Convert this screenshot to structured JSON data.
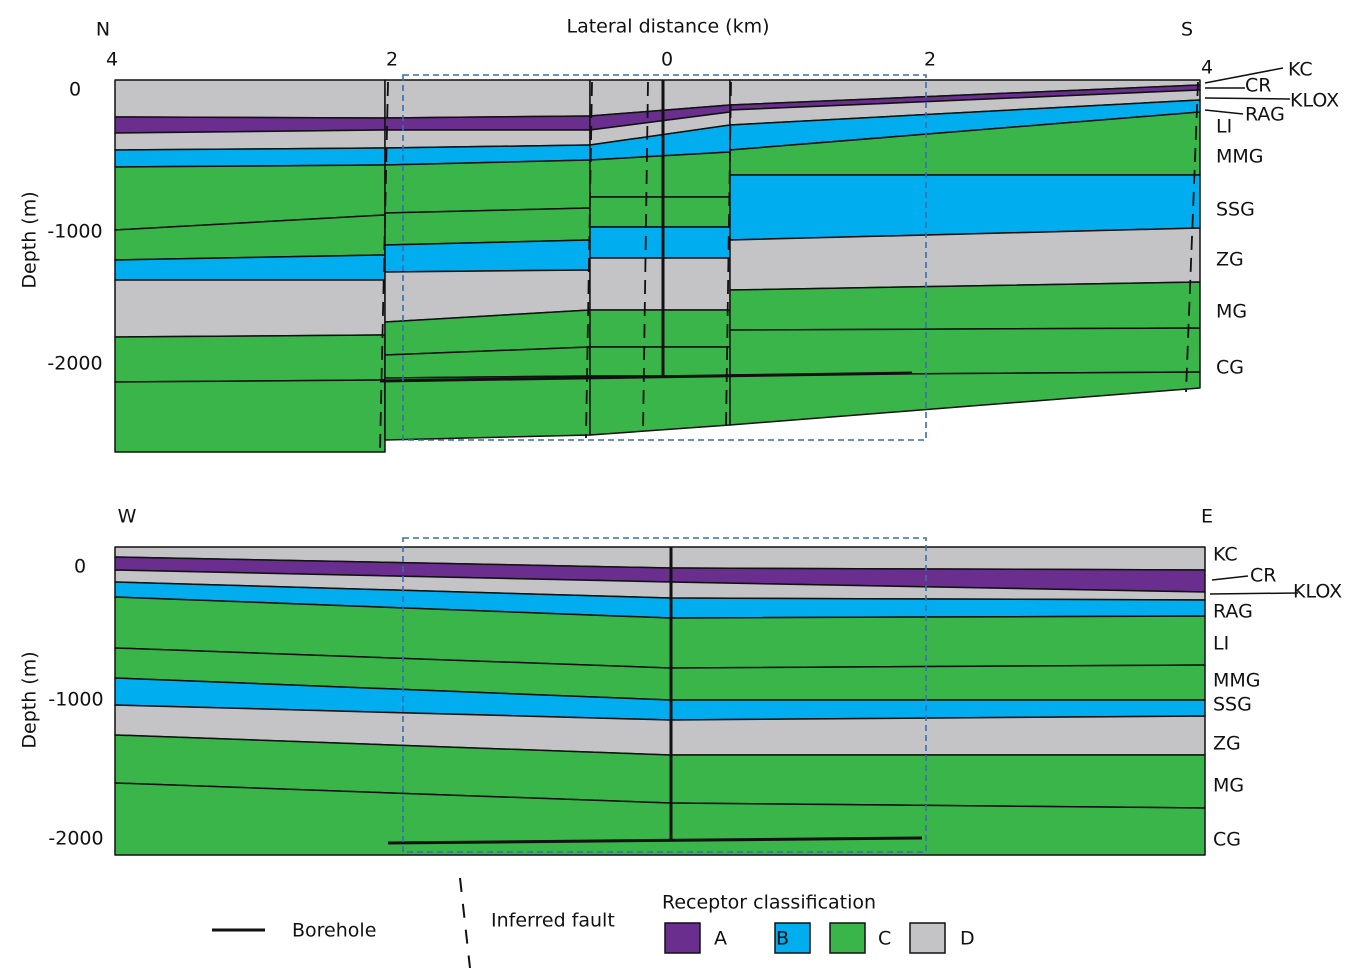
{
  "top_section": {
    "compass": [
      "N",
      "S"
    ],
    "x_axis_title": "Lateral distance (km)",
    "x_ticks": [
      4,
      2,
      0,
      2,
      4
    ],
    "y_axis_title": "Depth (m)",
    "y_ticks": [
      0,
      -1000,
      -2000
    ],
    "layers": [
      "KC",
      "CR",
      "KLOX",
      "RAG",
      "LI",
      "MMG",
      "SSG",
      "ZG",
      "MG",
      "CG"
    ]
  },
  "bottom_section": {
    "compass": [
      "W",
      "E"
    ],
    "y_axis_title": "Depth (m)",
    "y_ticks": [
      0,
      -1000,
      -2000
    ],
    "layers": [
      "KC",
      "CR",
      "KLOX",
      "RAG",
      "LI",
      "MMG",
      "SSG",
      "ZG",
      "MG",
      "CG"
    ]
  },
  "legend": {
    "borehole": "Borehole",
    "fault": "Inferred fault",
    "title": "Receptor classification",
    "classes": [
      "A",
      "B",
      "C",
      "D"
    ]
  }
}
